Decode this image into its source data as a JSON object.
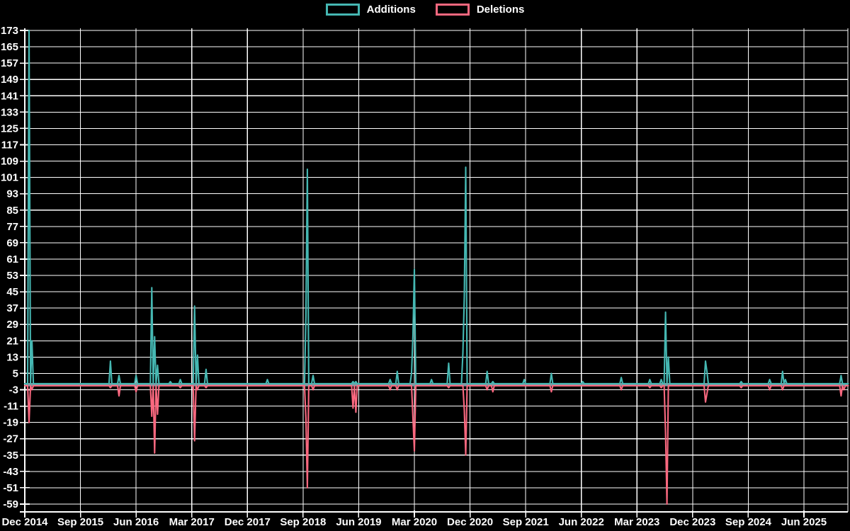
{
  "chart_data": {
    "type": "line",
    "title": "",
    "grid": true,
    "legend_position": "top-center",
    "background_color": "#000000",
    "grid_color": "#ffffff",
    "text_color": "#ffffff",
    "zero_band_color": "#7d9aa4",
    "y_axis": {
      "min": -59,
      "max": 173,
      "tick_step": 8,
      "ticks": [
        173,
        165,
        157,
        149,
        141,
        133,
        125,
        117,
        109,
        101,
        93,
        85,
        77,
        69,
        61,
        53,
        45,
        37,
        29,
        21,
        13,
        5,
        -3,
        -11,
        -19,
        -27,
        -35,
        -43,
        -51,
        -59
      ]
    },
    "x_axis": {
      "labels": [
        "Dec 2014",
        "Sep 2015",
        "Jun 2016",
        "Mar 2017",
        "Dec 2017",
        "Sep 2018",
        "Jun 2019",
        "Mar 2020",
        "Dec 2020",
        "Sep 2021",
        "Jun 2022",
        "Mar 2023",
        "Dec 2023",
        "Sep 2024",
        "Jun 2025"
      ],
      "weeks_per_label": 39,
      "weeks_total": 577
    },
    "series": [
      {
        "name": "Additions",
        "color": "#45b7b2",
        "baseline": 0,
        "points": [
          [
            3,
            173
          ],
          [
            5,
            21
          ],
          [
            60,
            11
          ],
          [
            66,
            4
          ],
          [
            78,
            4
          ],
          [
            89,
            47
          ],
          [
            91,
            23
          ],
          [
            93,
            9
          ],
          [
            102,
            1
          ],
          [
            109,
            2
          ],
          [
            119,
            38
          ],
          [
            121,
            14
          ],
          [
            127,
            7
          ],
          [
            170,
            2
          ],
          [
            197,
            33
          ],
          [
            198,
            105
          ],
          [
            202,
            4
          ],
          [
            230,
            1
          ],
          [
            232,
            1
          ],
          [
            256,
            2
          ],
          [
            261,
            6
          ],
          [
            271,
            5
          ],
          [
            272,
            24
          ],
          [
            273,
            56
          ],
          [
            285,
            2
          ],
          [
            297,
            10
          ],
          [
            307,
            15
          ],
          [
            308,
            43
          ],
          [
            309,
            106
          ],
          [
            324,
            6
          ],
          [
            328,
            1
          ],
          [
            350,
            2
          ],
          [
            369,
            5
          ],
          [
            391,
            1
          ],
          [
            418,
            3
          ],
          [
            438,
            2
          ],
          [
            446,
            2
          ],
          [
            449,
            35
          ],
          [
            451,
            13
          ],
          [
            477,
            11
          ],
          [
            478,
            6
          ],
          [
            502,
            1
          ],
          [
            522,
            2
          ],
          [
            531,
            6
          ],
          [
            533,
            2
          ],
          [
            572,
            4
          ]
        ]
      },
      {
        "name": "Deletions",
        "color": "#f9687f",
        "baseline": -1,
        "points": [
          [
            3,
            -19
          ],
          [
            5,
            -3
          ],
          [
            60,
            -2
          ],
          [
            66,
            -6
          ],
          [
            78,
            -4
          ],
          [
            89,
            -16
          ],
          [
            91,
            -34
          ],
          [
            93,
            -15
          ],
          [
            102,
            -1
          ],
          [
            109,
            -2
          ],
          [
            119,
            -28
          ],
          [
            121,
            -3
          ],
          [
            127,
            -2
          ],
          [
            170,
            -1
          ],
          [
            197,
            -17
          ],
          [
            198,
            -51
          ],
          [
            202,
            -3
          ],
          [
            230,
            -12
          ],
          [
            232,
            -14
          ],
          [
            256,
            -3
          ],
          [
            261,
            -3
          ],
          [
            272,
            -17
          ],
          [
            273,
            -33
          ],
          [
            297,
            -2
          ],
          [
            308,
            -13
          ],
          [
            309,
            -35
          ],
          [
            324,
            -3
          ],
          [
            328,
            -4
          ],
          [
            350,
            -1
          ],
          [
            369,
            -4
          ],
          [
            391,
            -1
          ],
          [
            418,
            -3
          ],
          [
            438,
            -2
          ],
          [
            446,
            -2
          ],
          [
            449,
            -24
          ],
          [
            450,
            -59
          ],
          [
            477,
            -9
          ],
          [
            478,
            -5
          ],
          [
            502,
            -2
          ],
          [
            522,
            -3
          ],
          [
            531,
            -3
          ],
          [
            572,
            -6
          ],
          [
            574,
            -3
          ]
        ]
      }
    ]
  }
}
